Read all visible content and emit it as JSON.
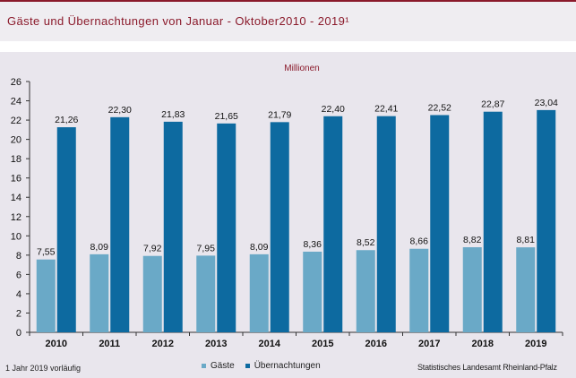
{
  "header": {
    "title": "Gäste und Übernachtungen von Januar - Oktober2010 - 2019¹"
  },
  "footnote": "1 Jahr 2019 vorläufig",
  "source": "Statistisches Landesamt Rheinland-Pfalz",
  "colors": {
    "guests": "#6aa9c7",
    "nights": "#0d6aa0",
    "title": "#8b1a2b",
    "background": "#e9e6ed"
  },
  "chart_data": {
    "type": "bar",
    "title": "Millionen",
    "categories": [
      "2010",
      "2011",
      "2012",
      "2013",
      "2014",
      "2015",
      "2016",
      "2017",
      "2018",
      "2019"
    ],
    "series": [
      {
        "name": "Gäste",
        "values": [
          7.55,
          8.09,
          7.92,
          7.95,
          8.09,
          8.36,
          8.52,
          8.66,
          8.82,
          8.81
        ],
        "labels": [
          "7,55",
          "8,09",
          "7,92",
          "7,95",
          "8,09",
          "8,36",
          "8,52",
          "8,66",
          "8,82",
          "8,81"
        ]
      },
      {
        "name": "Übernachtungen",
        "values": [
          21.26,
          22.3,
          21.83,
          21.65,
          21.79,
          22.4,
          22.41,
          22.52,
          22.87,
          23.04
        ],
        "labels": [
          "21,26",
          "22,30",
          "21,83",
          "21,65",
          "21,79",
          "22,40",
          "22,41",
          "22,52",
          "22,87",
          "23,04"
        ]
      }
    ],
    "ylim": [
      0,
      26
    ],
    "yticks": [
      0,
      2,
      4,
      6,
      8,
      10,
      12,
      14,
      16,
      18,
      20,
      22,
      24,
      26
    ],
    "grid": false,
    "legend": "bottom"
  }
}
